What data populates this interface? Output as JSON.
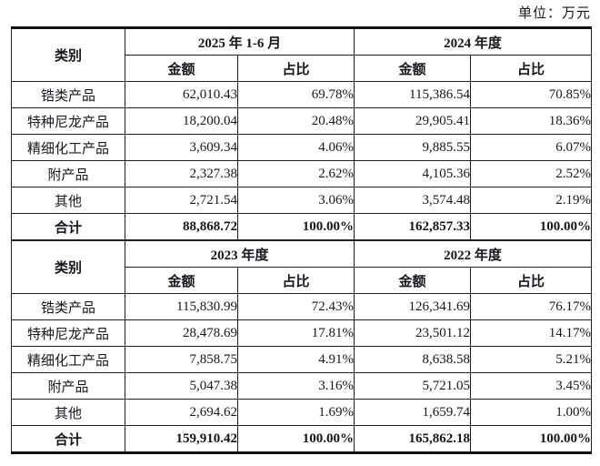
{
  "unit_label": "单位：万元",
  "colors": {
    "text": "#16161f",
    "border": "#1e1e24",
    "thick_border": "#0f0f14",
    "background": "#ffffff"
  },
  "tables": [
    {
      "col_header": "类别",
      "groups": [
        {
          "label": "2025 年 1-6 月"
        },
        {
          "label": "2024 年度"
        }
      ],
      "sub_headers": [
        "金额",
        "占比",
        "金额",
        "占比"
      ],
      "rows": [
        {
          "category": "锆类产品",
          "cells": [
            "62,010.43",
            "69.78%",
            "115,386.54",
            "70.85%"
          ]
        },
        {
          "category": "特种尼龙产品",
          "cells": [
            "18,200.04",
            "20.48%",
            "29,905.41",
            "18.36%"
          ]
        },
        {
          "category": "精细化工产品",
          "cells": [
            "3,609.34",
            "4.06%",
            "9,885.55",
            "6.07%"
          ]
        },
        {
          "category": "附产品",
          "cells": [
            "2,327.38",
            "2.62%",
            "4,105.36",
            "2.52%"
          ]
        },
        {
          "category": "其他",
          "cells": [
            "2,721.54",
            "3.06%",
            "3,574.48",
            "2.19%"
          ]
        }
      ],
      "total": {
        "category": "合计",
        "cells": [
          "88,868.72",
          "100.00%",
          "162,857.33",
          "100.00%"
        ]
      }
    },
    {
      "col_header": "类别",
      "groups": [
        {
          "label": "2023 年度"
        },
        {
          "label": "2022 年度"
        }
      ],
      "sub_headers": [
        "金额",
        "占比",
        "金额",
        "占比"
      ],
      "rows": [
        {
          "category": "锆类产品",
          "cells": [
            "115,830.99",
            "72.43%",
            "126,341.69",
            "76.17%"
          ]
        },
        {
          "category": "特种尼龙产品",
          "cells": [
            "28,478.69",
            "17.81%",
            "23,501.12",
            "14.17%"
          ]
        },
        {
          "category": "精细化工产品",
          "cells": [
            "7,858.75",
            "4.91%",
            "8,638.58",
            "5.21%"
          ]
        },
        {
          "category": "附产品",
          "cells": [
            "5,047.38",
            "3.16%",
            "5,721.05",
            "3.45%"
          ]
        },
        {
          "category": "其他",
          "cells": [
            "2,694.62",
            "1.69%",
            "1,659.74",
            "1.00%"
          ]
        }
      ],
      "total": {
        "category": "合计",
        "cells": [
          "159,910.42",
          "100.00%",
          "165,862.18",
          "100.00%"
        ]
      }
    }
  ]
}
